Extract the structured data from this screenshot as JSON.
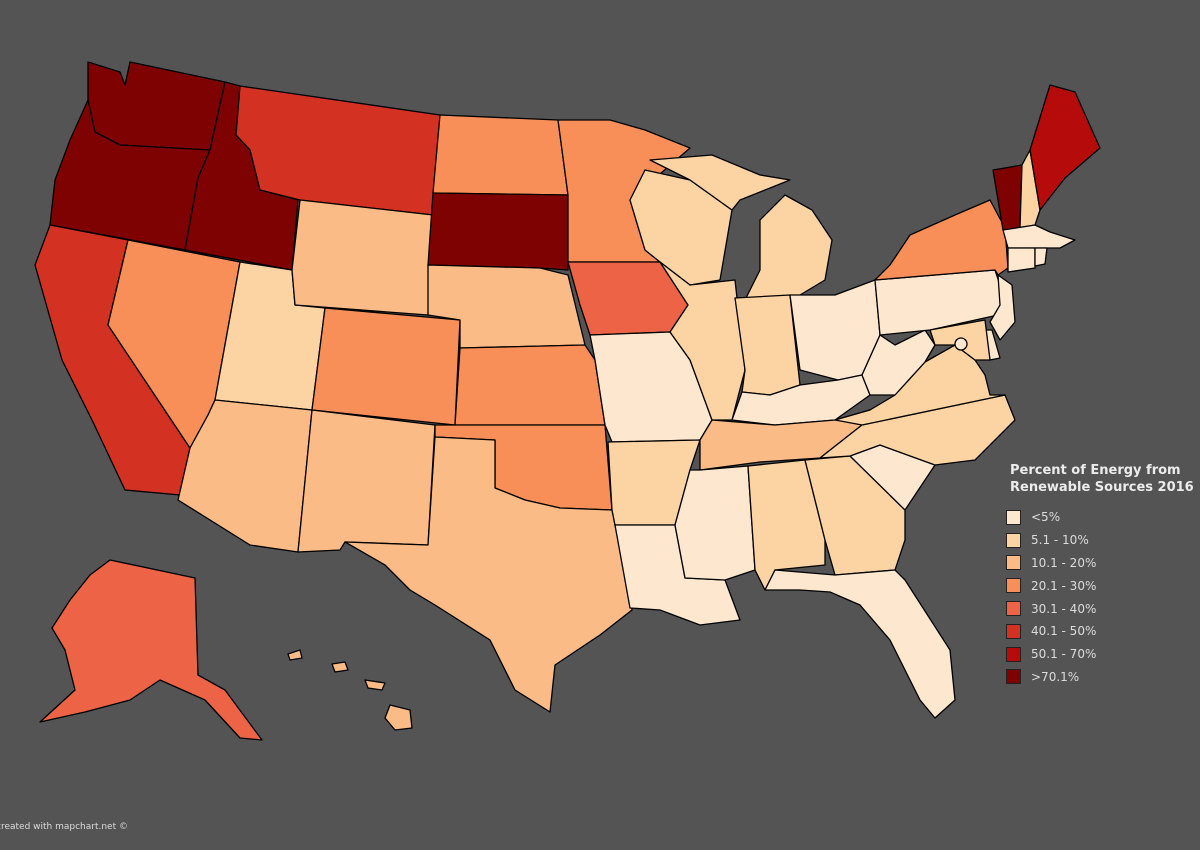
{
  "legend": {
    "title_line1": "Percent of Energy from",
    "title_line2": "Renewable Sources 2016",
    "items": [
      {
        "label": "<5%",
        "color": "#fde8cf"
      },
      {
        "label": "5.1 - 10%",
        "color": "#fcd3a3"
      },
      {
        "label": "10.1 - 20%",
        "color": "#fbbb86"
      },
      {
        "label": "20.1 - 30%",
        "color": "#f88f58"
      },
      {
        "label": "30.1 - 40%",
        "color": "#ec6346"
      },
      {
        "label": "40.1 - 50%",
        "color": "#d33122"
      },
      {
        "label": "50.1 - 70%",
        "color": "#b50b0b"
      },
      {
        "label": ">70.1%",
        "color": "#7e0202"
      }
    ]
  },
  "credit": "created with mapchart.net ©",
  "states": [
    {
      "name": "WA",
      "cls": 7
    },
    {
      "name": "OR",
      "cls": 7
    },
    {
      "name": "ID",
      "cls": 7
    },
    {
      "name": "MT",
      "cls": 5
    },
    {
      "name": "CA",
      "cls": 5
    },
    {
      "name": "NV",
      "cls": 3
    },
    {
      "name": "UT",
      "cls": 1
    },
    {
      "name": "AZ",
      "cls": 2
    },
    {
      "name": "WY",
      "cls": 2
    },
    {
      "name": "CO",
      "cls": 3
    },
    {
      "name": "NM",
      "cls": 2
    },
    {
      "name": "ND",
      "cls": 3
    },
    {
      "name": "SD",
      "cls": 7
    },
    {
      "name": "NE",
      "cls": 2
    },
    {
      "name": "KS",
      "cls": 3
    },
    {
      "name": "OK",
      "cls": 3
    },
    {
      "name": "TX",
      "cls": 2
    },
    {
      "name": "MN",
      "cls": 3
    },
    {
      "name": "IA",
      "cls": 4
    },
    {
      "name": "MO",
      "cls": 0
    },
    {
      "name": "AR",
      "cls": 1
    },
    {
      "name": "LA",
      "cls": 0
    },
    {
      "name": "WI",
      "cls": 1
    },
    {
      "name": "IL",
      "cls": 1
    },
    {
      "name": "MI",
      "cls": 1
    },
    {
      "name": "IN",
      "cls": 1
    },
    {
      "name": "OH",
      "cls": 0
    },
    {
      "name": "KY",
      "cls": 0
    },
    {
      "name": "TN",
      "cls": 2
    },
    {
      "name": "MS",
      "cls": 0
    },
    {
      "name": "AL",
      "cls": 1
    },
    {
      "name": "GA",
      "cls": 1
    },
    {
      "name": "FL",
      "cls": 0
    },
    {
      "name": "SC",
      "cls": 0
    },
    {
      "name": "NC",
      "cls": 1
    },
    {
      "name": "VA",
      "cls": 1
    },
    {
      "name": "WV",
      "cls": 0
    },
    {
      "name": "PA",
      "cls": 0
    },
    {
      "name": "NY",
      "cls": 3
    },
    {
      "name": "VT",
      "cls": 7
    },
    {
      "name": "NH",
      "cls": 1
    },
    {
      "name": "ME",
      "cls": 6
    },
    {
      "name": "MA",
      "cls": 0
    },
    {
      "name": "CT",
      "cls": 0
    },
    {
      "name": "RI",
      "cls": 0
    },
    {
      "name": "NJ",
      "cls": 0
    },
    {
      "name": "DE",
      "cls": 0
    },
    {
      "name": "MD",
      "cls": 1
    },
    {
      "name": "DC",
      "cls": 0
    },
    {
      "name": "AK",
      "cls": 4
    },
    {
      "name": "HI",
      "cls": 2
    }
  ]
}
